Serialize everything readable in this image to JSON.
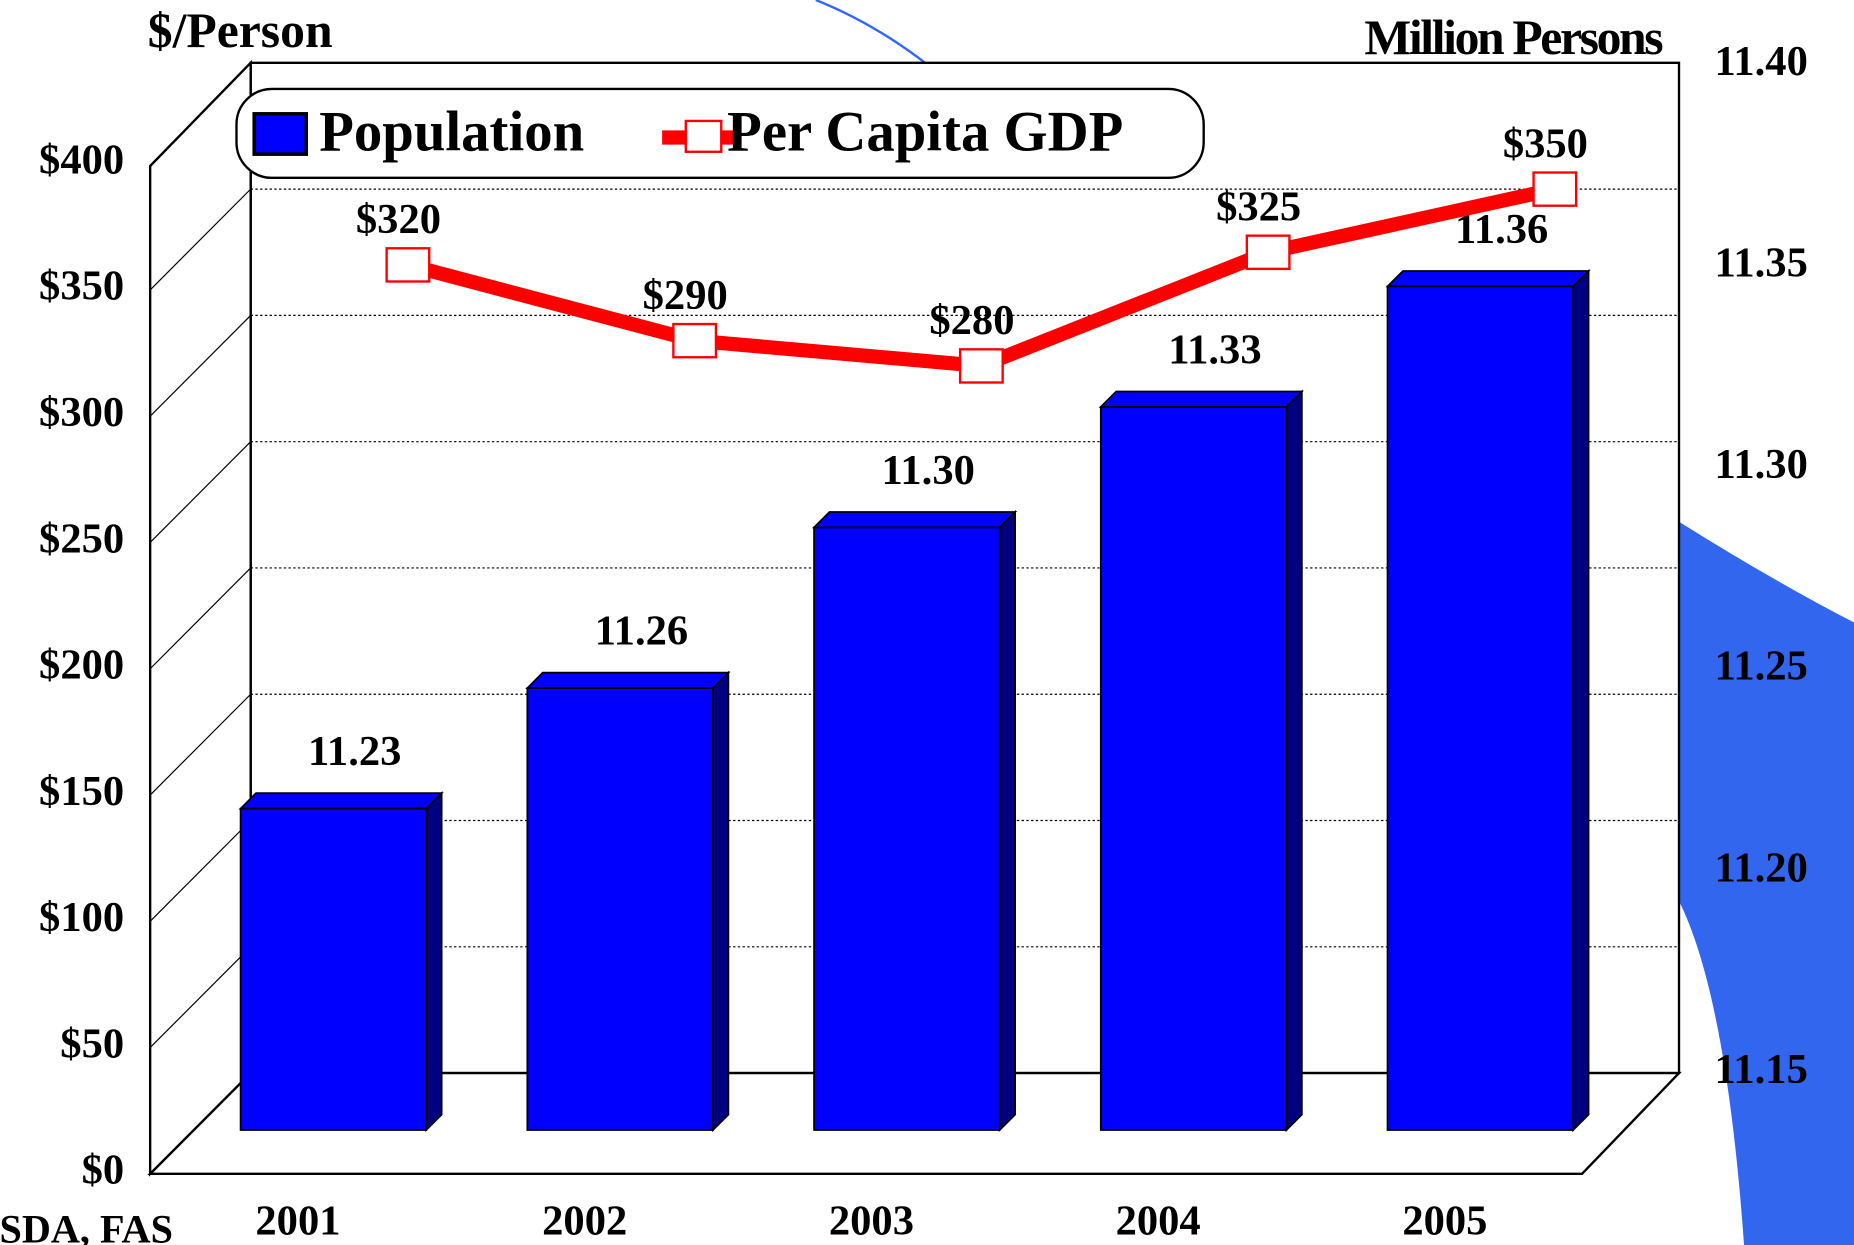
{
  "chart_data": {
    "type": "bar-line",
    "y_label": "$/Person",
    "y2_label": "Million Persons",
    "source": "USDA, FAS",
    "categories": [
      "2001",
      "2002",
      "2003",
      "2004",
      "2005"
    ],
    "series": [
      {
        "name": "Population",
        "type": "bar",
        "axis": "y2",
        "color": "#0000ff",
        "values": [
          11.23,
          11.26,
          11.3,
          11.33,
          11.36
        ],
        "value_labels": [
          "11.23",
          "11.26",
          "11.30",
          "11.33",
          "11.36"
        ]
      },
      {
        "name": "Per Capita GDP",
        "type": "line",
        "axis": "y",
        "color": "#ff0000",
        "values": [
          320,
          290,
          280,
          325,
          350
        ],
        "value_labels": [
          "$320",
          "$290",
          "$280",
          "$325",
          "$350"
        ]
      }
    ],
    "ylim": [
      0,
      400
    ],
    "yticks": [
      {
        "value": 0,
        "label": "$0"
      },
      {
        "value": 50,
        "label": "$50"
      },
      {
        "value": 100,
        "label": "$100"
      },
      {
        "value": 150,
        "label": "$150"
      },
      {
        "value": 200,
        "label": "$200"
      },
      {
        "value": 250,
        "label": "$250"
      },
      {
        "value": 300,
        "label": "$300"
      },
      {
        "value": 350,
        "label": "$350"
      },
      {
        "value": 400,
        "label": "$400"
      }
    ],
    "y2lim": [
      11.15,
      11.4
    ],
    "y2ticks": [
      {
        "value": 11.15,
        "label": "11.15"
      },
      {
        "value": 11.2,
        "label": "11.20"
      },
      {
        "value": 11.25,
        "label": "11.25"
      },
      {
        "value": 11.3,
        "label": "11.30"
      },
      {
        "value": 11.35,
        "label": "11.35"
      },
      {
        "value": 11.4,
        "label": "11.40"
      }
    ],
    "grid": true,
    "legend": "top"
  }
}
